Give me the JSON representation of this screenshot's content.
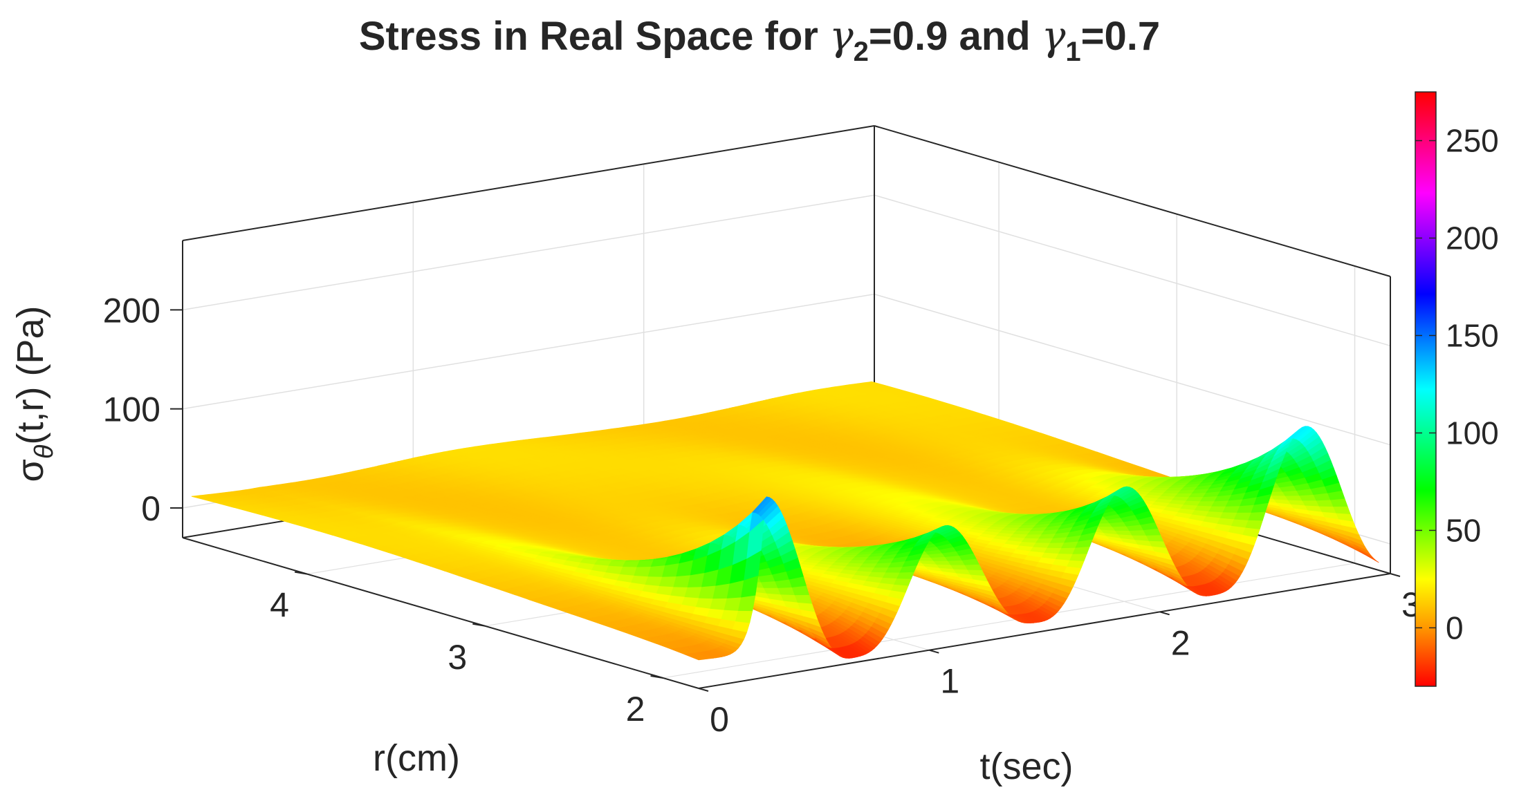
{
  "title": {
    "prefix": "Stress in Real Space for ",
    "g2_symbol": "γ",
    "g2_sub": "2",
    "g2_value": "=0.9 and ",
    "g1_symbol": "γ",
    "g1_sub": "1",
    "g1_value": "=0.7"
  },
  "zlabel": {
    "sigma": "σ",
    "sub": "θ",
    "rest": "(t,r) (Pa)"
  },
  "colors": {
    "box_edge": "#262626",
    "grid": "#e0e0e0",
    "surface_base": "#ffa000"
  },
  "chart_data": {
    "type": "surface",
    "title": "Stress in Real Space for γ2=0.9 and γ1=0.7",
    "xlabel": "t(sec)",
    "ylabel": "r(cm)",
    "zlabel": "σθ(t,r) (Pa)",
    "t_ticks": [
      "0",
      "1",
      "2",
      "3"
    ],
    "r_ticks": [
      "2",
      "3",
      "4"
    ],
    "z_ticks": [
      "0",
      "100",
      "200"
    ],
    "tlim": [
      0,
      3
    ],
    "rlim": [
      1.8,
      4.7
    ],
    "zlim": [
      -30,
      270
    ],
    "grid": true,
    "colormap": "hsv",
    "colorbar": {
      "position": "right",
      "ticks": [
        "0",
        "50",
        "100",
        "150",
        "200",
        "250"
      ],
      "range": [
        -30,
        275
      ]
    },
    "peak_times": [
      0.29,
      1.07,
      1.85,
      2.62
    ],
    "peak_values_at_rmin": [
      155,
      90,
      105,
      130
    ],
    "trough_values_at_rmin": [
      -25,
      -20,
      -22
    ]
  }
}
